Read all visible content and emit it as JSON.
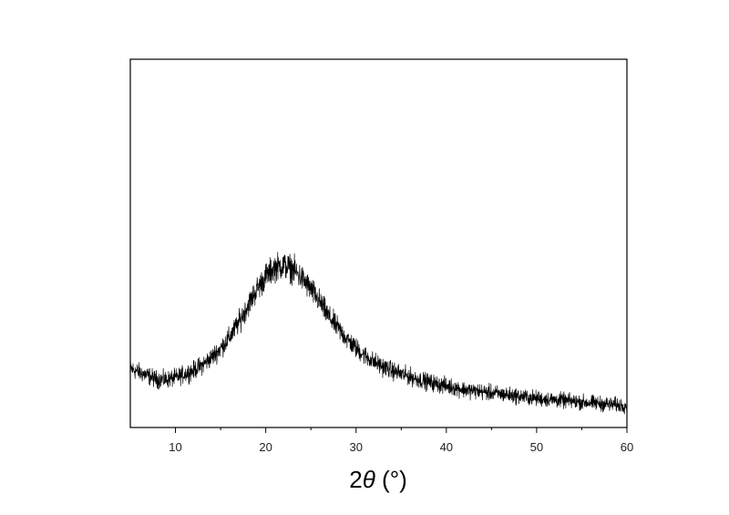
{
  "chart_data": {
    "type": "line",
    "title": "",
    "xlabel": "2θ (°)",
    "xlabel_parts": {
      "prefix": "2",
      "symbol": "θ",
      "suffix": " (°)"
    },
    "ylabel": "",
    "xlim": [
      5,
      60
    ],
    "ylim": [
      0,
      1
    ],
    "x_ticks": [
      10,
      20,
      30,
      40,
      50,
      60
    ],
    "x_tick_labels": [
      "10",
      "20",
      "30",
      "40",
      "50",
      "60"
    ],
    "x_minor_ticks": [
      5,
      15,
      25,
      35,
      45,
      55
    ],
    "y_tick_labels_shown": false,
    "grid": false,
    "legend": "none",
    "line_color": "#000000",
    "series": [
      {
        "x": [
          5,
          6,
          7,
          8,
          9,
          10,
          11,
          12,
          13,
          14,
          15,
          16,
          17,
          18,
          19,
          20,
          21,
          22,
          23,
          24,
          25,
          26,
          27,
          28,
          29,
          30,
          31,
          32,
          33,
          34,
          35,
          36,
          37,
          38,
          39,
          40,
          41,
          42,
          43,
          44,
          45,
          46,
          47,
          48,
          49,
          50,
          51,
          52,
          53,
          54,
          55,
          56,
          57,
          58,
          59,
          60
        ],
        "values": [
          0.16,
          0.15,
          0.14,
          0.13,
          0.13,
          0.135,
          0.145,
          0.155,
          0.17,
          0.19,
          0.215,
          0.245,
          0.285,
          0.33,
          0.375,
          0.41,
          0.435,
          0.44,
          0.43,
          0.405,
          0.375,
          0.34,
          0.3,
          0.27,
          0.24,
          0.215,
          0.195,
          0.178,
          0.165,
          0.155,
          0.145,
          0.138,
          0.13,
          0.124,
          0.118,
          0.113,
          0.108,
          0.103,
          0.1,
          0.097,
          0.094,
          0.091,
          0.088,
          0.085,
          0.082,
          0.079,
          0.077,
          0.075,
          0.073,
          0.071,
          0.069,
          0.067,
          0.065,
          0.063,
          0.061,
          0.06
        ],
        "noise_amplitude": 0.02
      }
    ]
  }
}
